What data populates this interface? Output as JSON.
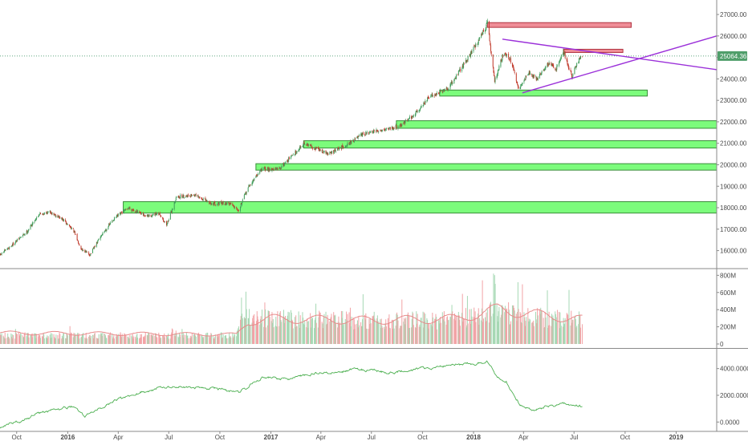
{
  "colors": {
    "background": "#ffffff",
    "up_candle": "#3f9c5a",
    "down_candle": "#c0392b",
    "support_zone_fill": "#7cfc7c",
    "support_zone_stroke": "#3a8c3a",
    "resistance_zone_fill": "#ef8d97",
    "resistance_zone_stroke": "#b0323f",
    "trendline": "#9b30d9",
    "price_line": "#2e8b57",
    "price_tag_bg": "#4f9e6a",
    "volume_up": "#a6d8b4",
    "volume_down": "#f2a3a6",
    "volume_ma": "#e88a8a",
    "indicator_line": "#4caf50",
    "pane_border": "#8a8a8a",
    "axis_text": "#4a4a4a"
  },
  "chart_data": [
    {
      "type": "candlestick",
      "pane": "price",
      "title": "",
      "ylim": [
        15200,
        27600
      ],
      "yticks": [
        16000,
        17000,
        18000,
        19000,
        20000,
        21000,
        22000,
        23000,
        24000,
        25000,
        26000,
        27000
      ],
      "ytick_labels": [
        "16000.00",
        "17000.00",
        "18000.00",
        "19000.00",
        "20000.00",
        "21000.00",
        "22000.00",
        "23000.00",
        "24000.00",
        "25000.00",
        "26000.00",
        "27000.00"
      ],
      "xlim": [
        "2015-09-01",
        "2019-03-15"
      ],
      "current_price": 25064.36,
      "current_price_label": "25064.36",
      "close_anchors": [
        [
          "2015-09-01",
          15800
        ],
        [
          "2015-09-20",
          16200
        ],
        [
          "2015-10-20",
          16900
        ],
        [
          "2015-11-10",
          17700
        ],
        [
          "2015-12-01",
          17800
        ],
        [
          "2015-12-20",
          17500
        ],
        [
          "2016-01-10",
          17000
        ],
        [
          "2016-01-25",
          16100
        ],
        [
          "2016-02-10",
          15800
        ],
        [
          "2016-03-01",
          16700
        ],
        [
          "2016-03-25",
          17500
        ],
        [
          "2016-04-20",
          18000
        ],
        [
          "2016-05-20",
          17600
        ],
        [
          "2016-06-15",
          17700
        ],
        [
          "2016-06-27",
          17200
        ],
        [
          "2016-07-15",
          18500
        ],
        [
          "2016-08-15",
          18600
        ],
        [
          "2016-09-15",
          18200
        ],
        [
          "2016-10-20",
          18200
        ],
        [
          "2016-11-04",
          17900
        ],
        [
          "2016-11-20",
          18900
        ],
        [
          "2016-12-15",
          19800
        ],
        [
          "2017-01-15",
          19800
        ],
        [
          "2017-02-15",
          20600
        ],
        [
          "2017-03-01",
          21000
        ],
        [
          "2017-04-15",
          20500
        ],
        [
          "2017-05-15",
          20900
        ],
        [
          "2017-06-15",
          21400
        ],
        [
          "2017-07-15",
          21600
        ],
        [
          "2017-08-20",
          21800
        ],
        [
          "2017-09-15",
          22300
        ],
        [
          "2017-10-15",
          23200
        ],
        [
          "2017-11-15",
          23500
        ],
        [
          "2017-12-15",
          24700
        ],
        [
          "2018-01-10",
          25800
        ],
        [
          "2018-01-26",
          26600
        ],
        [
          "2018-02-08",
          23900
        ],
        [
          "2018-02-25",
          25300
        ],
        [
          "2018-03-10",
          24800
        ],
        [
          "2018-03-23",
          23500
        ],
        [
          "2018-04-10",
          24300
        ],
        [
          "2018-04-25",
          24000
        ],
        [
          "2018-05-15",
          24700
        ],
        [
          "2018-05-30",
          24500
        ],
        [
          "2018-06-12",
          25300
        ],
        [
          "2018-06-27",
          24100
        ],
        [
          "2018-07-10",
          24900
        ],
        [
          "2018-07-16",
          25064
        ]
      ],
      "zones": [
        {
          "kind": "resistance",
          "from": "2018-01-26",
          "to": "2018-10-12",
          "low": 26400,
          "high": 26620
        },
        {
          "kind": "resistance",
          "from": "2018-06-12",
          "to": "2018-09-27",
          "low": 25250,
          "high": 25380
        },
        {
          "kind": "support",
          "from": "2017-11-01",
          "to": "2018-11-10",
          "low": 23200,
          "high": 23480
        },
        {
          "kind": "support",
          "from": "2017-08-15",
          "to": "2019-03-15",
          "low": 21700,
          "high": 22050
        },
        {
          "kind": "support",
          "from": "2017-03-01",
          "to": "2019-03-15",
          "low": 20780,
          "high": 21120
        },
        {
          "kind": "support",
          "from": "2016-12-05",
          "to": "2019-03-15",
          "low": 19750,
          "high": 20050
        },
        {
          "kind": "support",
          "from": "2016-04-10",
          "to": "2019-03-15",
          "low": 17750,
          "high": 18280
        }
      ],
      "trendlines": [
        {
          "from": [
            "2018-02-22",
            25850
          ],
          "to": [
            "2019-03-15",
            24430
          ]
        },
        {
          "from": [
            "2018-03-30",
            23350
          ],
          "to": [
            "2019-03-15",
            26000
          ]
        }
      ]
    },
    {
      "type": "bar",
      "pane": "volume",
      "ylim": [
        0,
        850
      ],
      "yticks": [
        0,
        200,
        400,
        600,
        800
      ],
      "ytick_labels": [
        "0",
        "200M",
        "400M",
        "600M",
        "800M"
      ],
      "series": [
        {
          "name": "base_volume_M",
          "points": [
            [
              "2015-09-01",
              110
            ],
            [
              "2016-10-31",
              110
            ],
            [
              "2016-11-09",
              330
            ],
            [
              "2017-07-01",
              300
            ],
            [
              "2017-12-01",
              310
            ],
            [
              "2018-02-05",
              420
            ],
            [
              "2018-04-01",
              360
            ],
            [
              "2018-07-16",
              300
            ]
          ]
        },
        {
          "name": "volume_ma_M",
          "points": [
            [
              "2015-09-01",
              140
            ],
            [
              "2016-10-31",
              120
            ],
            [
              "2016-11-20",
              280
            ],
            [
              "2017-01-01",
              320
            ],
            [
              "2017-07-01",
              300
            ],
            [
              "2017-12-01",
              320
            ],
            [
              "2018-02-15",
              440
            ],
            [
              "2018-04-15",
              380
            ],
            [
              "2018-07-16",
              310
            ]
          ]
        }
      ],
      "spikes": [
        [
          "2018-02-06",
          820
        ],
        [
          "2018-02-09",
          700
        ],
        [
          "2018-03-22",
          720
        ],
        [
          "2018-06-22",
          630
        ],
        [
          "2017-12-21",
          560
        ],
        [
          "2017-06-16",
          580
        ],
        [
          "2016-11-09",
          540
        ]
      ]
    },
    {
      "type": "line",
      "pane": "indicator",
      "ylim": [
        -700,
        5300
      ],
      "yticks": [
        0,
        2000,
        4000
      ],
      "ytick_labels": [
        "0.0000",
        "2000.0000",
        "4000.0000"
      ],
      "series": [
        {
          "name": "indicator",
          "points": [
            [
              "2015-09-01",
              -500
            ],
            [
              "2015-10-15",
              200
            ],
            [
              "2015-12-01",
              900
            ],
            [
              "2016-01-10",
              1200
            ],
            [
              "2016-02-01",
              400
            ],
            [
              "2016-03-15",
              1400
            ],
            [
              "2016-05-01",
              2200
            ],
            [
              "2016-07-01",
              2700
            ],
            [
              "2016-09-15",
              2600
            ],
            [
              "2016-11-04",
              2200
            ],
            [
              "2016-12-15",
              3300
            ],
            [
              "2017-02-01",
              3200
            ],
            [
              "2017-04-01",
              3700
            ],
            [
              "2017-06-01",
              3900
            ],
            [
              "2017-08-01",
              3700
            ],
            [
              "2017-10-01",
              4000
            ],
            [
              "2017-12-01",
              4200
            ],
            [
              "2018-01-26",
              4500
            ],
            [
              "2018-02-10",
              3500
            ],
            [
              "2018-03-01",
              3000
            ],
            [
              "2018-03-25",
              1300
            ],
            [
              "2018-04-20",
              900
            ],
            [
              "2018-05-15",
              1200
            ],
            [
              "2018-06-15",
              1400
            ],
            [
              "2018-07-16",
              1200
            ]
          ]
        }
      ]
    }
  ],
  "x_axis": {
    "ticks": [
      {
        "date": "2015-10-01",
        "label": "Oct",
        "bold": false
      },
      {
        "date": "2016-01-01",
        "label": "2016",
        "bold": true
      },
      {
        "date": "2016-04-01",
        "label": "Apr",
        "bold": false
      },
      {
        "date": "2016-07-01",
        "label": "Jul",
        "bold": false
      },
      {
        "date": "2016-10-01",
        "label": "Oct",
        "bold": false
      },
      {
        "date": "2017-01-01",
        "label": "2017",
        "bold": true
      },
      {
        "date": "2017-04-01",
        "label": "Apr",
        "bold": false
      },
      {
        "date": "2017-07-01",
        "label": "Jul",
        "bold": false
      },
      {
        "date": "2017-10-01",
        "label": "Oct",
        "bold": false
      },
      {
        "date": "2018-01-01",
        "label": "2018",
        "bold": true
      },
      {
        "date": "2018-04-01",
        "label": "Apr",
        "bold": false
      },
      {
        "date": "2018-07-01",
        "label": "Jul",
        "bold": false
      },
      {
        "date": "2018-10-01",
        "label": "Oct",
        "bold": false
      },
      {
        "date": "2019-01-01",
        "label": "2019",
        "bold": true
      }
    ]
  }
}
